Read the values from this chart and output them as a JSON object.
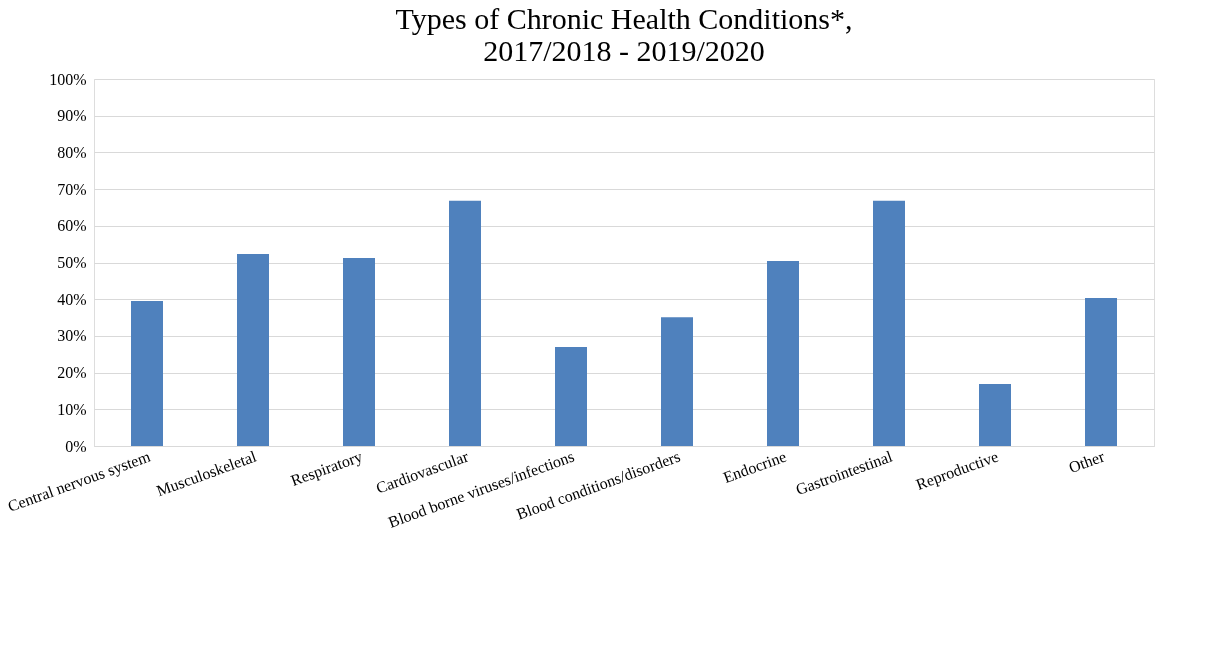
{
  "chart_data": {
    "type": "bar",
    "title": [
      "Types of Chronic Health Conditions*,",
      "2017/2018 - 2019/2020"
    ],
    "categories": [
      "Central nervous system",
      "Musculoskeletal",
      "Respiratory",
      "Cardiovascular",
      "Blood borne viruses/infections",
      "Blood conditions/disorders",
      "Endocrine",
      "Gastrointestinal",
      "Reproductive",
      "Other"
    ],
    "values": [
      39.5,
      52.3,
      51.2,
      66.8,
      27.0,
      35.1,
      50.4,
      66.8,
      16.9,
      40.3
    ],
    "color": "#4f81bd",
    "ylim": [
      0,
      100
    ],
    "yticks": [
      {
        "value": 0,
        "label": "0%"
      },
      {
        "value": 10,
        "label": "10%"
      },
      {
        "value": 20,
        "label": "20%"
      },
      {
        "value": 30,
        "label": "30%"
      },
      {
        "value": 40,
        "label": "40%"
      },
      {
        "value": 50,
        "label": "50%"
      },
      {
        "value": 60,
        "label": "60%"
      },
      {
        "value": 70,
        "label": "70%"
      },
      {
        "value": 80,
        "label": "80%"
      },
      {
        "value": 90,
        "label": "90%"
      },
      {
        "value": 100,
        "label": "100%"
      }
    ],
    "grid": "y"
  }
}
